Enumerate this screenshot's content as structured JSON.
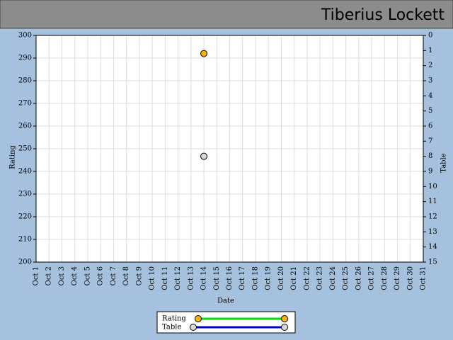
{
  "header": {
    "title": "Tiberius Lockett"
  },
  "chart_data": {
    "type": "line",
    "x_label": "Date",
    "y_label": "Rating",
    "y2_label": "Table",
    "categories": [
      "Oct 1",
      "Oct 2",
      "Oct 3",
      "Oct 4",
      "Oct 5",
      "Oct 6",
      "Oct 7",
      "Oct 8",
      "Oct 9",
      "Oct 10",
      "Oct 11",
      "Oct 12",
      "Oct 13",
      "Oct 14",
      "Oct 15",
      "Oct 16",
      "Oct 17",
      "Oct 18",
      "Oct 19",
      "Oct 20",
      "Oct 21",
      "Oct 22",
      "Oct 23",
      "Oct 24",
      "Oct 25",
      "Oct 26",
      "Oct 27",
      "Oct 28",
      "Oct 29",
      "Oct 30",
      "Oct 31"
    ],
    "series": [
      {
        "name": "Rating",
        "color": "#00dd00",
        "marker_color": "#ffb000",
        "values": [
          null,
          null,
          null,
          null,
          null,
          null,
          null,
          null,
          null,
          null,
          null,
          null,
          null,
          292,
          null,
          null,
          null,
          null,
          null,
          null,
          null,
          null,
          null,
          null,
          null,
          null,
          null,
          null,
          null,
          null,
          null
        ]
      },
      {
        "name": "Table",
        "color": "#0000cc",
        "marker_color": "#d8d8d8",
        "axis": "y2",
        "values": [
          null,
          null,
          null,
          null,
          null,
          null,
          null,
          null,
          null,
          null,
          null,
          null,
          null,
          8,
          null,
          null,
          null,
          null,
          null,
          null,
          null,
          null,
          null,
          null,
          null,
          null,
          null,
          null,
          null,
          null,
          null
        ]
      }
    ],
    "ylim": [
      200,
      300
    ],
    "yticks": [
      200,
      210,
      220,
      230,
      240,
      250,
      260,
      270,
      280,
      290,
      300
    ],
    "y2lim": [
      15,
      0
    ],
    "y2ticks": [
      0,
      1,
      2,
      3,
      4,
      5,
      6,
      7,
      8,
      9,
      10,
      11,
      12,
      13,
      14,
      15
    ],
    "grid": true
  }
}
